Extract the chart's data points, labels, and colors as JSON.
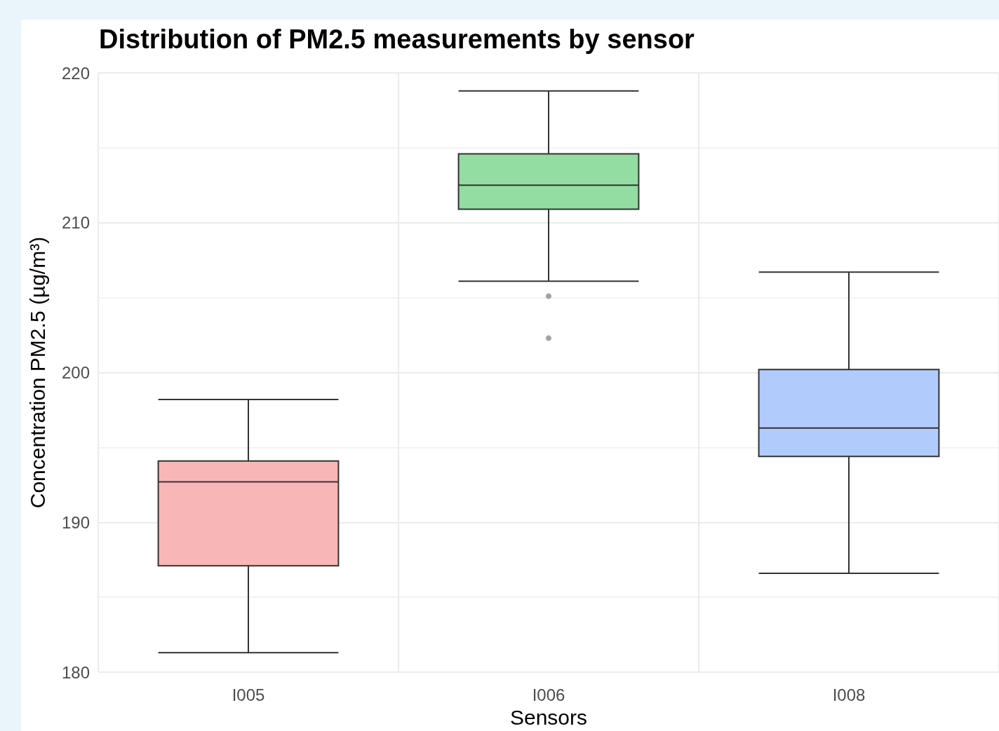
{
  "chart_data": {
    "type": "box",
    "title": "Distribution of PM2.5 measurements by sensor",
    "xlabel": "Sensors",
    "ylabel": "Concentration PM2.5 (µg/m³)",
    "categories": [
      "I005",
      "I006",
      "I008"
    ],
    "colors": [
      "#f8b7b6",
      "#93dca2",
      "#b1cbfd"
    ],
    "boxes": [
      {
        "low": 181.3,
        "q1": 187.1,
        "median": 192.7,
        "q3": 194.1,
        "high": 198.2
      },
      {
        "low": 206.1,
        "q1": 210.9,
        "median": 212.5,
        "q3": 214.6,
        "high": 218.8,
        "outliers": [
          205.1,
          202.3
        ]
      },
      {
        "low": 186.6,
        "q1": 194.4,
        "median": 196.3,
        "q3": 200.2,
        "high": 206.7
      }
    ],
    "ylim": [
      180,
      220
    ],
    "yticks": [
      180,
      190,
      200,
      210,
      220
    ],
    "grid": true
  }
}
